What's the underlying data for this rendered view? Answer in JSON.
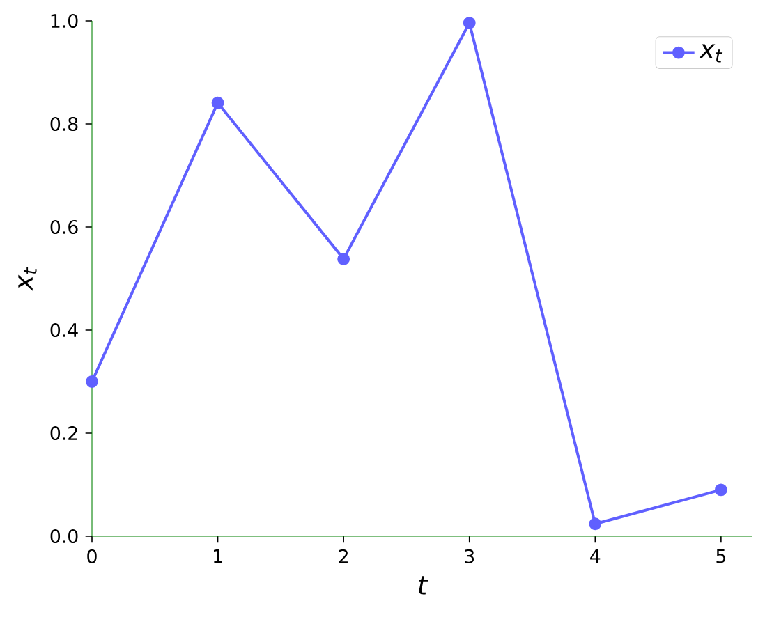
{
  "chart_data": {
    "type": "line",
    "xlabel": "t",
    "ylabel": "x$_{t}$",
    "x": [
      0,
      1,
      2,
      3,
      4,
      5
    ],
    "series": [
      {
        "name": "x$_{t}$",
        "color": "#6060ff",
        "values": [
          0.3,
          0.841,
          0.538,
          0.996,
          0.024,
          0.09
        ]
      }
    ],
    "xlim": [
      0,
      5.25
    ],
    "ylim": [
      0,
      1.0
    ],
    "xticks": [
      0,
      1,
      2,
      3,
      4,
      5
    ],
    "yticks": [
      {
        "value": 0,
        "label": "0.0"
      },
      {
        "value": 0.2,
        "label": "0.2"
      },
      {
        "value": 0.4,
        "label": "0.4"
      },
      {
        "value": 0.6,
        "label": "0.6"
      },
      {
        "value": 0.8,
        "label": "0.8"
      },
      {
        "value": 1.0,
        "label": "1.0"
      }
    ],
    "grid": false,
    "legend": "top right",
    "marker": "circle",
    "line_style": "solid"
  }
}
